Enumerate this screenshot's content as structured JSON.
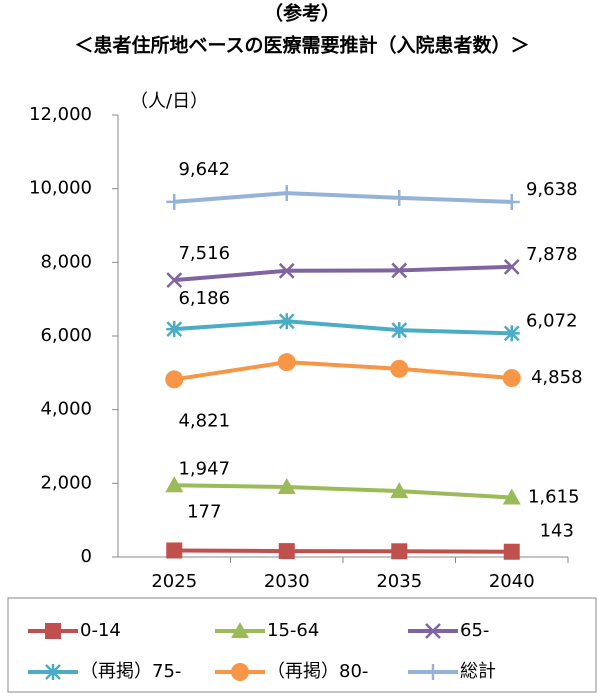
{
  "chart_data": {
    "type": "line",
    "title": "（参考）",
    "subtitle": "＜患者住所地ベースの医療需要推計（入院患者数）＞",
    "y_unit": "（人/日）",
    "categories": [
      "2025",
      "2030",
      "2035",
      "2040"
    ],
    "ylim": [
      0,
      12000
    ],
    "yticks": [
      {
        "value": 0,
        "label": "0"
      },
      {
        "value": 2000,
        "label": "2,000"
      },
      {
        "value": 4000,
        "label": "4,000"
      },
      {
        "value": 6000,
        "label": "6,000"
      },
      {
        "value": 8000,
        "label": "8,000"
      },
      {
        "value": 10000,
        "label": "10,000"
      },
      {
        "value": 12000,
        "label": "12,000"
      }
    ],
    "grid": false,
    "legend": "bottom",
    "series": [
      {
        "name": "0-14",
        "color": "#c0504d",
        "marker": "square",
        "values": [
          177,
          160,
          155,
          143
        ],
        "value_labels": [
          "177",
          null,
          null,
          "143"
        ]
      },
      {
        "name": "15-64",
        "color": "#9bbb59",
        "marker": "triangle",
        "values": [
          1947,
          1900,
          1790,
          1615
        ],
        "value_labels": [
          "1,947",
          null,
          null,
          "1,615"
        ]
      },
      {
        "name": "65-",
        "color": "#8064a2",
        "marker": "x",
        "values": [
          7516,
          7770,
          7780,
          7878
        ],
        "value_labels": [
          "7,516",
          null,
          null,
          "7,878"
        ]
      },
      {
        "name": "（再掲）75-",
        "color": "#4bacc6",
        "marker": "star",
        "values": [
          6186,
          6400,
          6160,
          6072
        ],
        "value_labels": [
          "6,186",
          null,
          null,
          "6,072"
        ]
      },
      {
        "name": "（再掲）80-",
        "color": "#f79646",
        "marker": "circle",
        "values": [
          4821,
          5290,
          5110,
          4858
        ],
        "value_labels": [
          "4,821",
          null,
          null,
          "4,858"
        ]
      },
      {
        "name": "総計",
        "color": "#95b3d7",
        "marker": "plus",
        "values": [
          9642,
          9880,
          9750,
          9638
        ],
        "value_labels": [
          "9,642",
          null,
          null,
          "9,638"
        ]
      }
    ]
  }
}
